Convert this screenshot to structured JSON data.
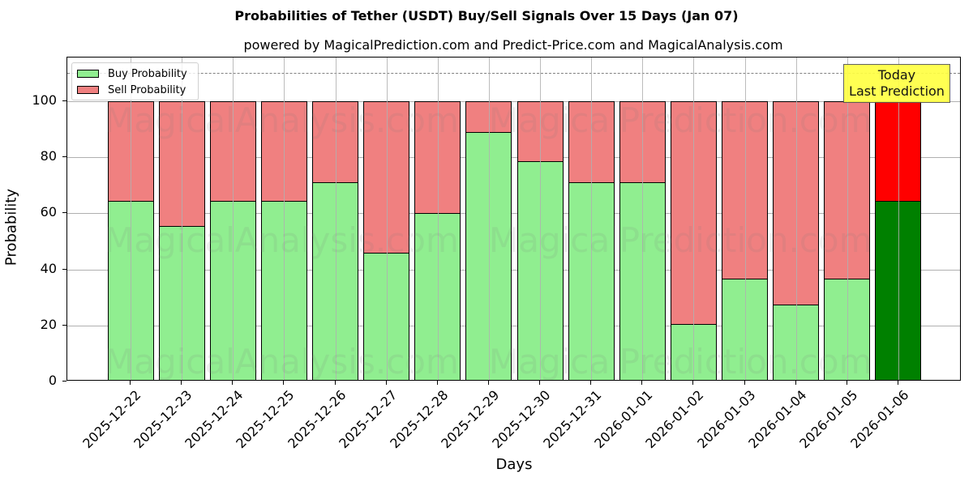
{
  "header": {
    "title": "Probabilities of Tether (USDT) Buy/Sell Signals Over 15 Days (Jan 07)",
    "subtitle": "powered by MagicalPrediction.com and Predict-Price.com and MagicalAnalysis.com"
  },
  "axes": {
    "xlabel": "Days",
    "ylabel": "Probability",
    "yticks": [
      "0",
      "20",
      "40",
      "60",
      "80",
      "100"
    ]
  },
  "legend": {
    "buy_label": "Buy Probability",
    "sell_label": "Sell Probability"
  },
  "annotation": {
    "line1": "Today",
    "line2": "Last Prediction"
  },
  "watermarks": [
    "MagicalAnalysis.com",
    "MagicalPrediction.com"
  ],
  "colors": {
    "buy": "#90ee90",
    "sell": "#f08080",
    "buy_today": "#008000",
    "sell_today": "#ff0000",
    "annotation_bg": "#ffff44"
  },
  "chart_data": {
    "type": "bar",
    "stacked": true,
    "title": "Probabilities of Tether (USDT) Buy/Sell Signals Over 15 Days (Jan 07)",
    "subtitle": "powered by MagicalPrediction.com and Predict-Price.com and MagicalAnalysis.com",
    "xlabel": "Days",
    "ylabel": "Probability",
    "ylim": [
      0,
      115
    ],
    "yticks": [
      0,
      20,
      40,
      60,
      80,
      100
    ],
    "grid": true,
    "legend_position": "upper left",
    "reference_line": {
      "y": 110,
      "style": "dashed",
      "color": "#808080"
    },
    "categories": [
      "2025-12-22",
      "2025-12-23",
      "2025-12-24",
      "2025-12-25",
      "2025-12-26",
      "2025-12-27",
      "2025-12-28",
      "2025-12-29",
      "2025-12-30",
      "2025-12-31",
      "2026-01-01",
      "2026-01-02",
      "2026-01-03",
      "2026-01-04",
      "2026-01-05",
      "2026-01-06"
    ],
    "series": [
      {
        "name": "Buy Probability",
        "values": [
          64.4,
          55.5,
          64.4,
          64.4,
          71.0,
          46.0,
          60.2,
          89.1,
          78.5,
          71.0,
          71.0,
          20.4,
          36.6,
          27.4,
          36.6,
          64.4
        ]
      },
      {
        "name": "Sell Probability",
        "values": [
          35.6,
          44.5,
          35.6,
          35.6,
          29.0,
          54.0,
          39.8,
          10.9,
          21.5,
          29.0,
          29.0,
          79.6,
          63.4,
          72.6,
          63.4,
          35.6
        ]
      }
    ],
    "annotations": [
      {
        "text": "Today\nLast Prediction",
        "x": "2026-01-06"
      }
    ]
  }
}
